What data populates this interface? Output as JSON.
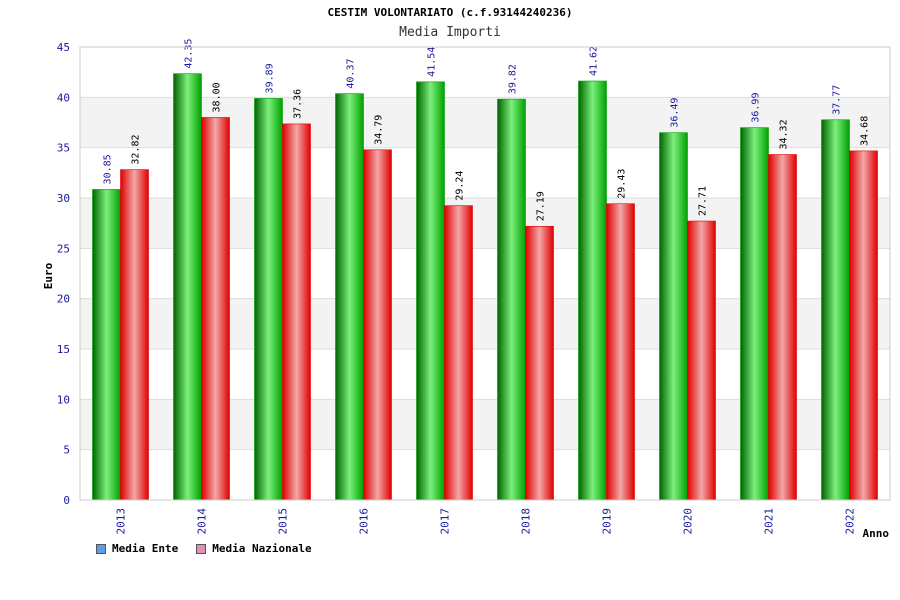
{
  "title": "CESTIM VOLONTARIATO (c.f.93144240236)",
  "subtitle": "Media Importi",
  "chart_data": {
    "type": "bar",
    "categories": [
      "2013",
      "2014",
      "2015",
      "2016",
      "2017",
      "2018",
      "2019",
      "2020",
      "2021",
      "2022"
    ],
    "series": [
      {
        "name": "Media Ente",
        "values": [
          30.85,
          42.35,
          39.89,
          40.37,
          41.54,
          39.82,
          41.62,
          36.49,
          36.99,
          37.77
        ],
        "labels": [
          "30.85",
          "42.35",
          "39.89",
          "40.37",
          "41.54",
          "39.82",
          "41.62",
          "36.49",
          "36.99",
          "37.77"
        ],
        "color": "#00c000",
        "legend_color": "#5aa0e8"
      },
      {
        "name": "Media Nazionale",
        "values": [
          32.82,
          38.0,
          37.36,
          34.79,
          29.24,
          27.19,
          29.43,
          27.71,
          34.32,
          34.68
        ],
        "labels": [
          "32.82",
          "38.00",
          "37.36",
          "34.79",
          "29.24",
          "27.19",
          "29.43",
          "27.71",
          "34.32",
          "34.68"
        ],
        "color": "#ff1a1a",
        "legend_color": "#e090b8"
      }
    ],
    "yticks": [
      "0",
      "5",
      "10",
      "15",
      "20",
      "25",
      "30",
      "35",
      "40",
      "45"
    ],
    "xlabel": "Anno",
    "ylabel": "Euro",
    "ylim": [
      0,
      45
    ],
    "grid": true,
    "legend_position": "bottom-left"
  }
}
